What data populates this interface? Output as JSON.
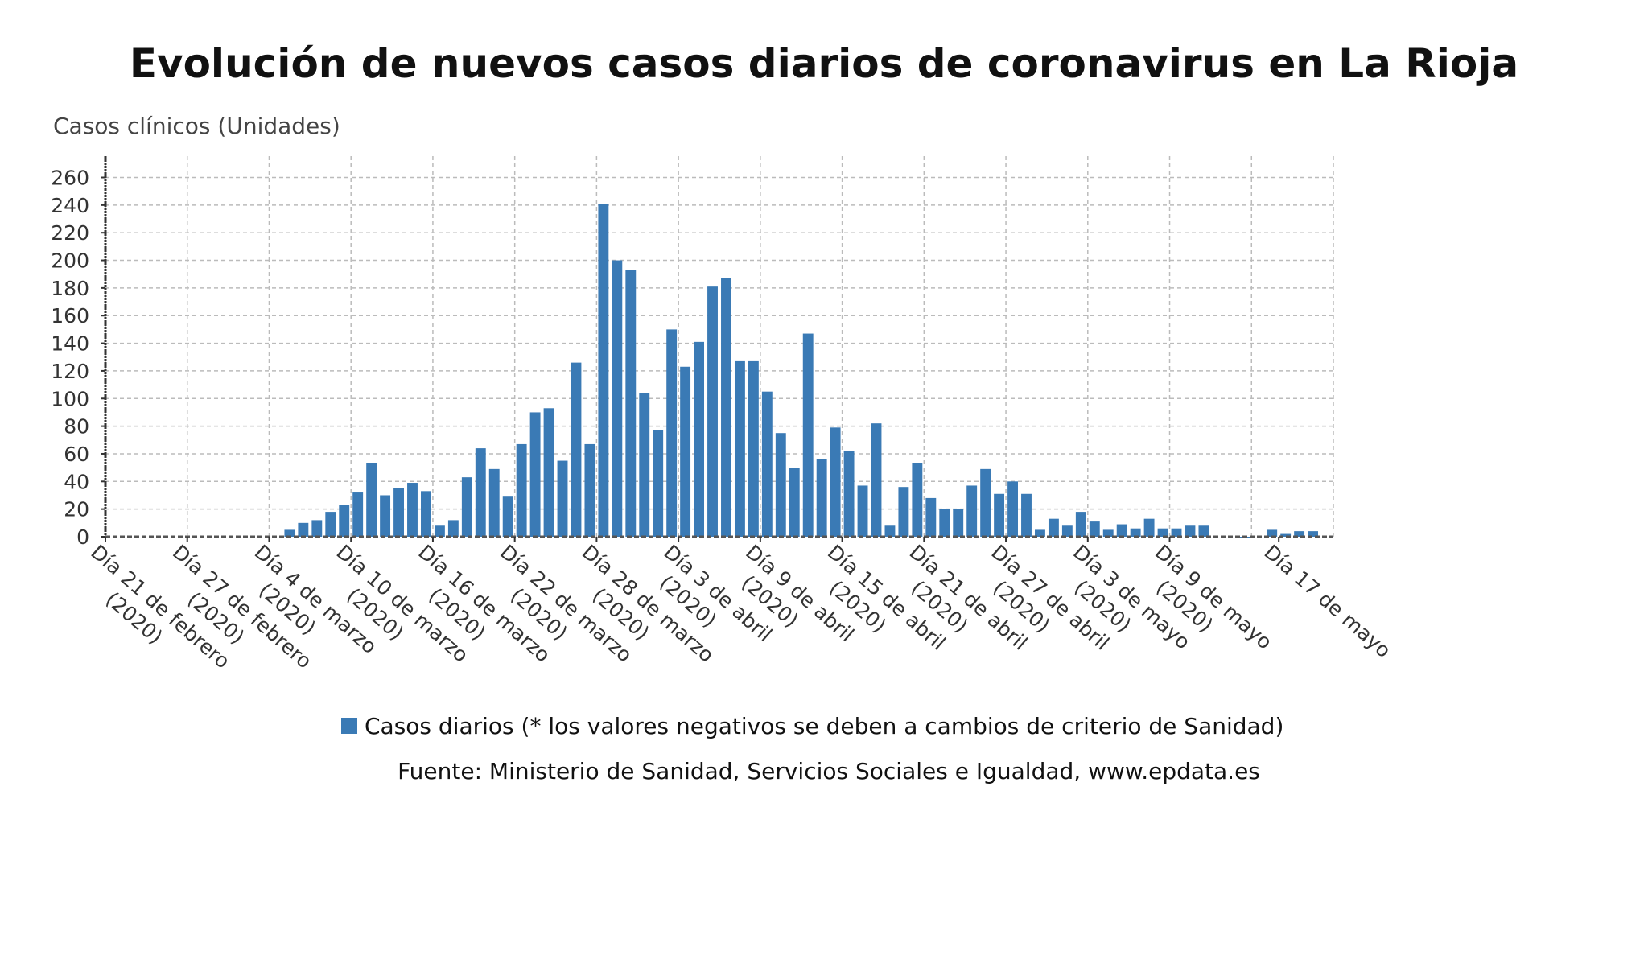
{
  "chart_data": {
    "type": "bar",
    "title": "Evolución de nuevos casos diarios de coronavirus en La Rioja",
    "ylabel": "Casos clínicos (Unidades)",
    "xlabel": "",
    "ylim": [
      0,
      275
    ],
    "yticks": [
      0,
      20,
      40,
      60,
      80,
      100,
      120,
      140,
      160,
      180,
      200,
      220,
      240,
      260
    ],
    "grid": true,
    "color": "#3a7ab5",
    "x_tick_labels": [
      {
        "index": 0,
        "line1": "Día 21 de febrero",
        "line2": "(2020)"
      },
      {
        "index": 6,
        "line1": "Día 27 de febrero",
        "line2": "(2020)"
      },
      {
        "index": 12,
        "line1": "Día 4 de marzo",
        "line2": "(2020)"
      },
      {
        "index": 18,
        "line1": "Día 10 de marzo",
        "line2": "(2020)"
      },
      {
        "index": 24,
        "line1": "Día 16 de marzo",
        "line2": "(2020)"
      },
      {
        "index": 30,
        "line1": "Día 22 de marzo",
        "line2": "(2020)"
      },
      {
        "index": 36,
        "line1": "Día 28 de marzo",
        "line2": "(2020)"
      },
      {
        "index": 42,
        "line1": "Día 3 de abril",
        "line2": "(2020)"
      },
      {
        "index": 48,
        "line1": "Día 9 de abril",
        "line2": "(2020)"
      },
      {
        "index": 54,
        "line1": "Día 15 de abril",
        "line2": "(2020)"
      },
      {
        "index": 60,
        "line1": "Día 21 de abril",
        "line2": "(2020)"
      },
      {
        "index": 66,
        "line1": "Día 27 de abril",
        "line2": "(2020)"
      },
      {
        "index": 72,
        "line1": "Día 3 de mayo",
        "line2": "(2020)"
      },
      {
        "index": 78,
        "line1": "Día 9 de mayo",
        "line2": "(2020)"
      },
      {
        "index": 86,
        "line1": "Día 17 de mayo",
        "line2": ""
      }
    ],
    "grid_indices": [
      0,
      6,
      12,
      18,
      24,
      30,
      36,
      42,
      48,
      54,
      60,
      66,
      72,
      78,
      84,
      90
    ],
    "series": [
      {
        "name": "Casos diarios (* los valores negativos se deben a cambios de criterio de Sanidad)",
        "values": [
          0,
          0,
          0,
          0,
          0,
          0,
          0,
          0,
          0,
          0,
          0,
          0,
          0,
          5,
          10,
          12,
          18,
          23,
          32,
          53,
          30,
          35,
          39,
          33,
          8,
          12,
          43,
          64,
          49,
          29,
          67,
          90,
          93,
          55,
          126,
          67,
          241,
          200,
          193,
          104,
          77,
          150,
          123,
          141,
          181,
          187,
          127,
          127,
          105,
          75,
          50,
          147,
          56,
          79,
          62,
          37,
          82,
          8,
          36,
          53,
          28,
          20,
          20,
          37,
          49,
          31,
          40,
          31,
          5,
          13,
          8,
          18,
          11,
          5,
          9,
          6,
          13,
          6,
          6,
          8,
          8,
          0,
          0,
          -1,
          0,
          5,
          2,
          4,
          4,
          0
        ]
      }
    ]
  },
  "legend_label": "Casos diarios (* los valores negativos se deben a cambios de criterio de Sanidad)",
  "source": "Fuente: Ministerio de Sanidad, Servicios Sociales e Igualdad, www.epdata.es"
}
